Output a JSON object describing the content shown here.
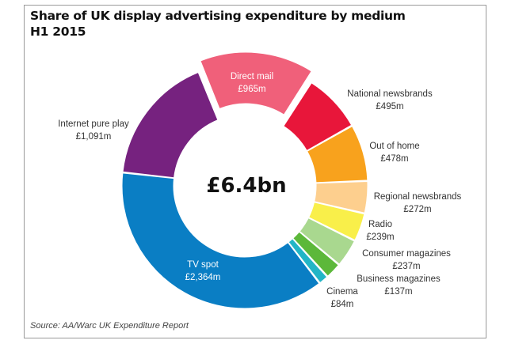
{
  "chart_data": {
    "type": "pie",
    "style": "donut",
    "title": "Share of UK display advertising expenditure by medium",
    "subtitle": "H1 2015",
    "center_label": "£6.4bn",
    "unit": "£m",
    "exploded": "Direct mail",
    "slices": [
      {
        "name": "Direct mail",
        "label": "£965m",
        "value": 965,
        "color": "#f0607a"
      },
      {
        "name": "National newsbrands",
        "label": "£495m",
        "value": 495,
        "color": "#e8163a"
      },
      {
        "name": "Out of home",
        "label": "£478m",
        "value": 478,
        "color": "#f8a21d"
      },
      {
        "name": "Regional newsbrands",
        "label": "£272m",
        "value": 272,
        "color": "#fdcf8e"
      },
      {
        "name": "Radio",
        "label": "£239m",
        "value": 239,
        "color": "#f9ef4a"
      },
      {
        "name": "Consumer magazines",
        "label": "£237m",
        "value": 237,
        "color": "#a9d88f"
      },
      {
        "name": "Business magazines",
        "label": "£137m",
        "value": 137,
        "color": "#5cb83a"
      },
      {
        "name": "Cinema",
        "label": "£84m",
        "value": 84,
        "color": "#22b5c6"
      },
      {
        "name": "TV spot",
        "label": "£2,364m",
        "value": 2364,
        "color": "#0a7ec4"
      },
      {
        "name": "Internet pure play",
        "label": "£1,091m",
        "value": 1091,
        "color": "#76227f"
      }
    ]
  },
  "source": "Source: AA/Warc UK Expenditure Report"
}
